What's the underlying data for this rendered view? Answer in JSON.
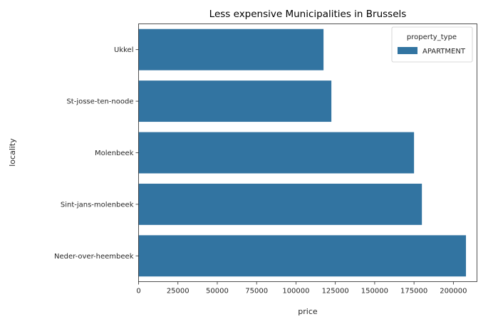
{
  "chart_data": {
    "type": "bar",
    "orientation": "horizontal",
    "title": "Less expensive Municipalities in Brussels",
    "xlabel": "price",
    "ylabel": "locality",
    "categories": [
      "Ukkel",
      "St-josse-ten-noode",
      "Molenbeek",
      "Sint-jans-molenbeek",
      "Neder-over-heembeek"
    ],
    "series": [
      {
        "name": "APARTMENT",
        "values": [
          117500,
          122500,
          175000,
          180000,
          208000
        ]
      }
    ],
    "xlim": [
      0,
      215000
    ],
    "xticks": [
      0,
      25000,
      50000,
      75000,
      100000,
      125000,
      150000,
      175000,
      200000
    ],
    "grid": false,
    "legend": {
      "title": "property_type",
      "position": "top-right"
    },
    "colors": {
      "bar": "#3274a1"
    }
  }
}
